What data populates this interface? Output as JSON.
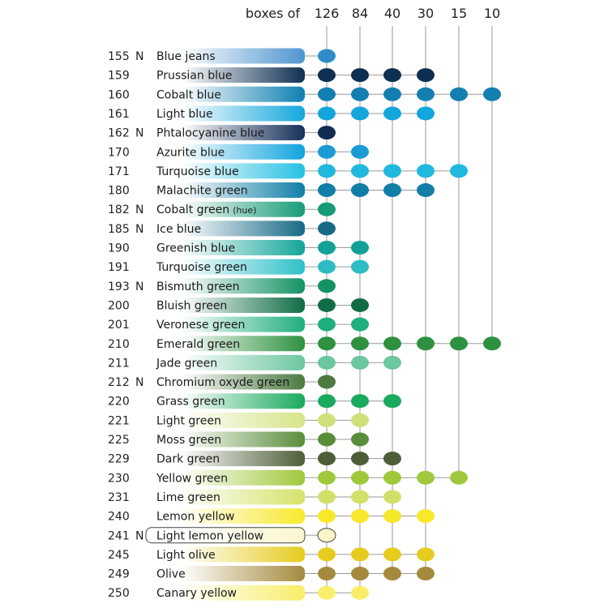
{
  "header": {
    "title": "boxes of"
  },
  "box_sizes": [
    "126",
    "84",
    "40",
    "30",
    "15",
    "10"
  ],
  "colors": [
    {
      "number": "155",
      "flag": "N",
      "name": "Blue jeans",
      "note": "",
      "swatch": [
        "#ffffff",
        "#4f95cf"
      ],
      "dot": "#2f8cc8",
      "boxes": [
        126
      ]
    },
    {
      "number": "159",
      "flag": "",
      "name": "Prussian blue",
      "note": "",
      "swatch": [
        "#ffffff",
        "#0f2f52"
      ],
      "dot": "#0f2f52",
      "boxes": [
        126,
        84,
        40,
        30
      ]
    },
    {
      "number": "160",
      "flag": "",
      "name": "Cobalt blue",
      "note": "",
      "swatch": [
        "#ffffff",
        "#0f7fb2"
      ],
      "dot": "#127fb0",
      "boxes": [
        126,
        84,
        40,
        30,
        15,
        10
      ]
    },
    {
      "number": "161",
      "flag": "",
      "name": "Light blue",
      "note": "",
      "swatch": [
        "#ffffff",
        "#13a7dc"
      ],
      "dot": "#12a6dc",
      "boxes": [
        126,
        84,
        40,
        30
      ]
    },
    {
      "number": "162",
      "flag": "N",
      "name": "Phtalocyanine blue",
      "note": "",
      "swatch": [
        "#ffffff",
        "#16305a"
      ],
      "dot": "#112b52",
      "boxes": [
        126
      ]
    },
    {
      "number": "170",
      "flag": "",
      "name": "Azurite blue",
      "note": "",
      "swatch": [
        "#ffffff",
        "#0fa3de"
      ],
      "dot": "#199bd6",
      "boxes": [
        126,
        84
      ]
    },
    {
      "number": "171",
      "flag": "",
      "name": "Turquoise blue",
      "note": "",
      "swatch": [
        "#ffffff",
        "#27c1e3"
      ],
      "dot": "#21b8de",
      "boxes": [
        126,
        84,
        40,
        30,
        15
      ]
    },
    {
      "number": "180",
      "flag": "",
      "name": "Malachite green",
      "note": "",
      "swatch": [
        "#ffffff",
        "#0f7ea6"
      ],
      "dot": "#117ea6",
      "boxes": [
        126,
        84,
        40,
        30
      ]
    },
    {
      "number": "182",
      "flag": "N",
      "name": "Cobalt green",
      "note": "(hue)",
      "swatch": [
        "#ffffff",
        "#179a78"
      ],
      "dot": "#169a77",
      "boxes": [
        126
      ]
    },
    {
      "number": "185",
      "flag": "N",
      "name": "Ice blue",
      "note": "",
      "swatch": [
        "#ffffff",
        "#176a86"
      ],
      "dot": "#176a86",
      "boxes": [
        126
      ]
    },
    {
      "number": "190",
      "flag": "",
      "name": "Greenish blue",
      "note": "",
      "swatch": [
        "#ffffff",
        "#14a59a"
      ],
      "dot": "#12a196",
      "boxes": [
        126,
        84
      ]
    },
    {
      "number": "191",
      "flag": "",
      "name": "Turquoise green",
      "note": "",
      "swatch": [
        "#ffffff",
        "#2fc0c8"
      ],
      "dot": "#2ebcc4",
      "boxes": [
        126,
        84
      ]
    },
    {
      "number": "193",
      "flag": "N",
      "name": "Bismuth green",
      "note": "",
      "swatch": [
        "#ffffff",
        "#149263"
      ],
      "dot": "#149263",
      "boxes": [
        126
      ]
    },
    {
      "number": "200",
      "flag": "",
      "name": "Bluish green",
      "note": "",
      "swatch": [
        "#ffffff",
        "#0f6c44"
      ],
      "dot": "#0f6c44",
      "boxes": [
        126,
        84
      ]
    },
    {
      "number": "201",
      "flag": "",
      "name": "Veronese green",
      "note": "",
      "swatch": [
        "#ffffff",
        "#1fae7d"
      ],
      "dot": "#1fae7d",
      "boxes": [
        126,
        84
      ]
    },
    {
      "number": "210",
      "flag": "",
      "name": "Emerald green",
      "note": "",
      "swatch": [
        "#ffffff",
        "#2e9140"
      ],
      "dot": "#2e9140",
      "boxes": [
        126,
        84,
        40,
        30,
        15,
        10
      ]
    },
    {
      "number": "211",
      "flag": "",
      "name": "Jade green",
      "note": "",
      "swatch": [
        "#ffffff",
        "#6cc6a0"
      ],
      "dot": "#6cc6a0",
      "boxes": [
        126,
        84,
        40
      ]
    },
    {
      "number": "212",
      "flag": "N",
      "name": "Chromium oxyde green",
      "note": "",
      "swatch": [
        "#ffffff",
        "#4c7a40"
      ],
      "dot": "#4c7a40",
      "boxes": [
        126
      ]
    },
    {
      "number": "220",
      "flag": "",
      "name": "Grass green",
      "note": "",
      "swatch": [
        "#ffffff",
        "#19aa5e"
      ],
      "dot": "#19aa5e",
      "boxes": [
        126,
        84,
        40
      ]
    },
    {
      "number": "221",
      "flag": "",
      "name": "Light green",
      "note": "",
      "swatch": [
        "#ffffff",
        "#d7e48a"
      ],
      "dot": "#cfe07a",
      "boxes": [
        126,
        84
      ]
    },
    {
      "number": "225",
      "flag": "",
      "name": "Moss green",
      "note": "",
      "swatch": [
        "#ffffff",
        "#5a8d3a"
      ],
      "dot": "#5a8d3a",
      "boxes": [
        126,
        84
      ]
    },
    {
      "number": "229",
      "flag": "",
      "name": "Dark green",
      "note": "",
      "swatch": [
        "#ffffff",
        "#4e5e38"
      ],
      "dot": "#4e5e38",
      "boxes": [
        126,
        84,
        40
      ]
    },
    {
      "number": "230",
      "flag": "",
      "name": "Yellow green",
      "note": "",
      "swatch": [
        "#ffffff",
        "#9fc83c"
      ],
      "dot": "#9fc83c",
      "boxes": [
        126,
        84,
        40,
        30,
        15
      ]
    },
    {
      "number": "231",
      "flag": "",
      "name": "Lime green",
      "note": "",
      "swatch": [
        "#ffffff",
        "#d6e26a"
      ],
      "dot": "#d1e06a",
      "boxes": [
        126,
        84,
        40
      ]
    },
    {
      "number": "240",
      "flag": "",
      "name": "Lemon yellow",
      "note": "",
      "swatch": [
        "#ffffff",
        "#f8e82c"
      ],
      "dot": "#f8e82c",
      "boxes": [
        126,
        84,
        40,
        30
      ]
    },
    {
      "number": "241",
      "flag": "N",
      "name": "Light lemon yellow",
      "note": "",
      "swatch": [
        "#ffffff",
        "#fbf6cf"
      ],
      "dot": "#faf4c6",
      "boxes": [
        126
      ],
      "outlined": true
    },
    {
      "number": "245",
      "flag": "",
      "name": "Light olive",
      "note": "",
      "swatch": [
        "#ffffff",
        "#e6cc1e"
      ],
      "dot": "#e6cc1e",
      "boxes": [
        126,
        84,
        40,
        30
      ]
    },
    {
      "number": "249",
      "flag": "",
      "name": "Olive",
      "note": "",
      "swatch": [
        "#ffffff",
        "#a58a3e"
      ],
      "dot": "#a58a3e",
      "boxes": [
        126,
        84,
        40,
        30
      ]
    },
    {
      "number": "250",
      "flag": "",
      "name": "Canary yellow",
      "note": "",
      "swatch": [
        "#ffffff",
        "#f8ee6a"
      ],
      "dot": "#f8ee6a",
      "boxes": [
        126,
        84
      ]
    }
  ]
}
